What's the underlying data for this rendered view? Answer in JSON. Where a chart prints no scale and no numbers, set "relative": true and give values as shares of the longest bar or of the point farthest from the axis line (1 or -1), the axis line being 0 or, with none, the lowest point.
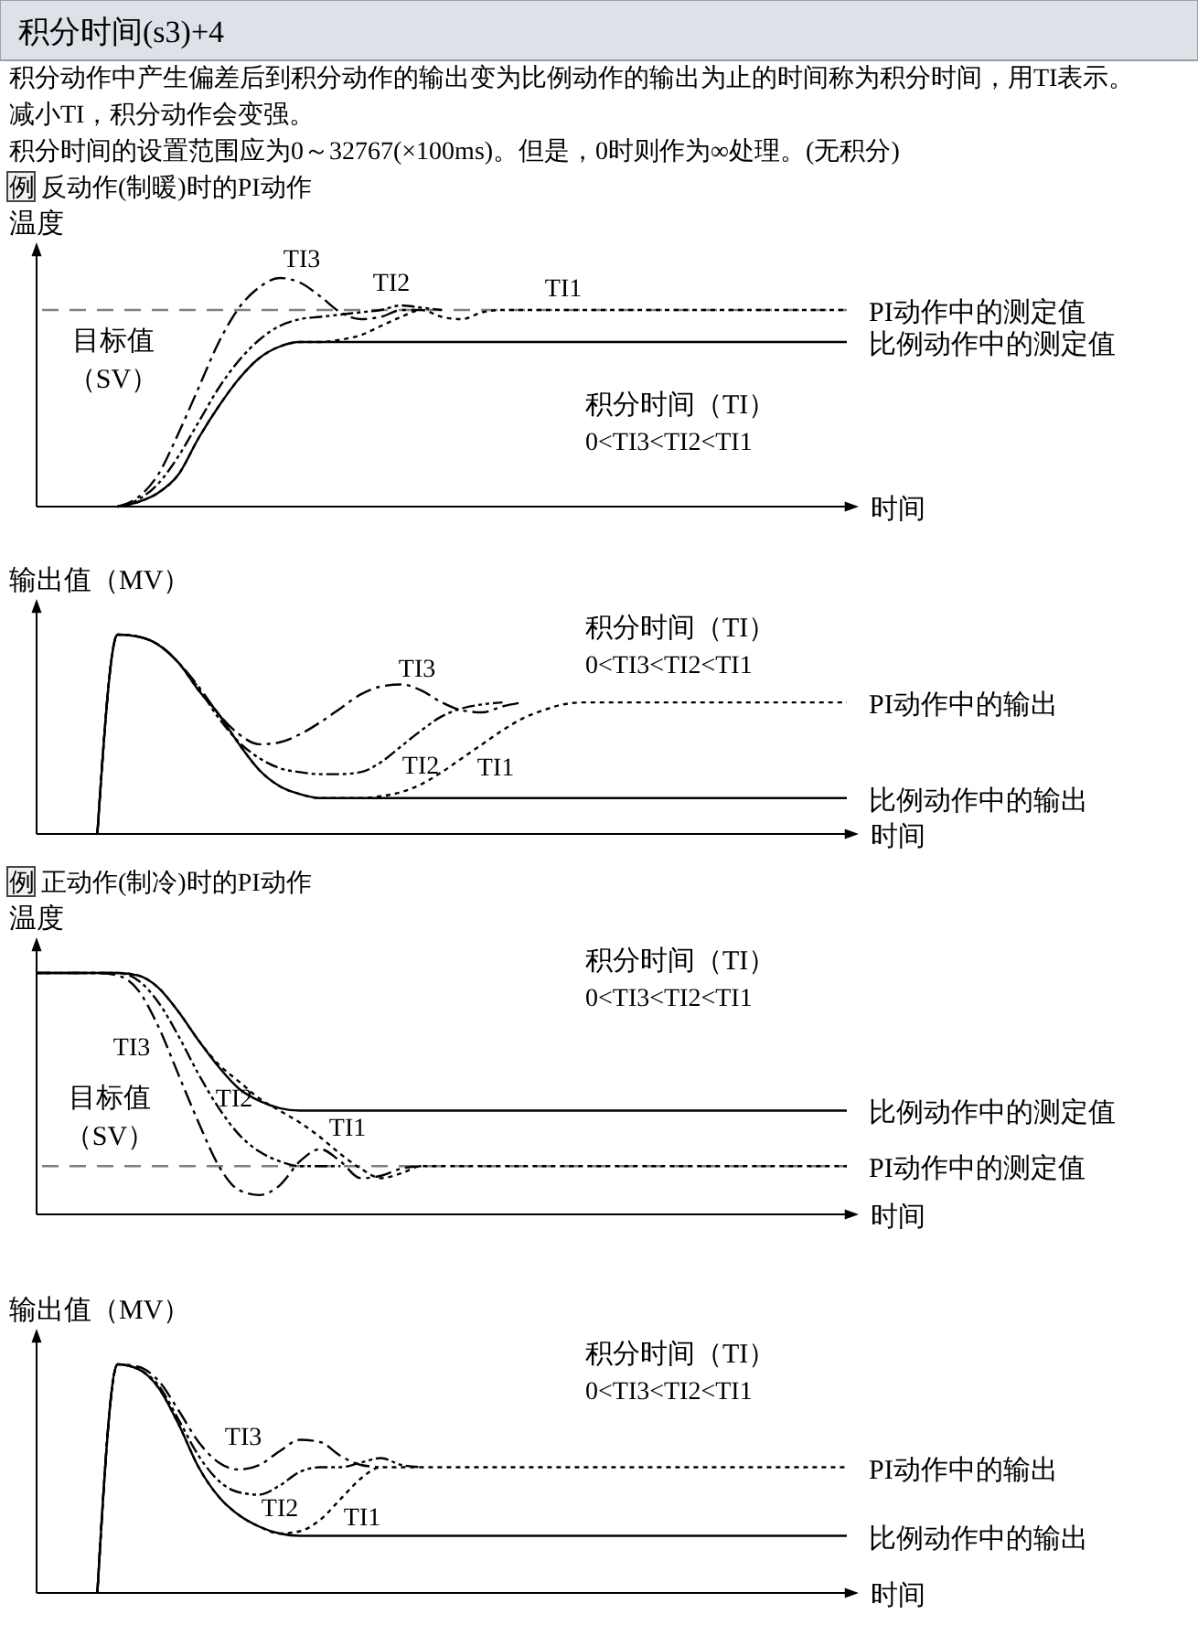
{
  "chart_data": [
    {
      "type": "line",
      "relative": true,
      "title": "积分时间(s3)+4",
      "ylabel": "温度",
      "xlabel": "时间",
      "categories": [
        null,
        null,
        null,
        null,
        null,
        null,
        null,
        null,
        null,
        null,
        null,
        null,
        null,
        null,
        null,
        null,
        null,
        null,
        null,
        null,
        null,
        null,
        null,
        null,
        null,
        null,
        null,
        null,
        null,
        null,
        null,
        null,
        null,
        null,
        null,
        null,
        null,
        null,
        null,
        null,
        null
      ],
      "series": [
        {
          "name": "比例动作中的测定值",
          "color": "#000000",
          "line_style": "solid",
          "values": [
            null,
            null,
            null,
            null,
            0,
            0.02,
            0.06,
            0.14,
            0.3,
            0.44,
            0.56,
            0.65,
            0.7,
            0.72,
            0.72,
            0.72,
            0.72,
            0.72,
            0.72,
            0.72,
            0.72,
            0.72,
            0.72,
            0.72,
            0.72,
            0.72,
            0.72,
            0.72,
            0.72,
            0.72,
            0.72,
            0.72,
            0.72,
            0.72,
            0.72,
            0.72,
            0.72,
            0.72,
            0.72,
            0.72,
            0.72
          ]
        },
        {
          "name": "TI1",
          "color": "#000000",
          "line_style": "dotted",
          "values": [
            null,
            null,
            null,
            null,
            0,
            0.02,
            0.06,
            0.14,
            0.3,
            0.44,
            0.56,
            0.65,
            0.7,
            0.72,
            0.72,
            0.73,
            0.75,
            0.79,
            0.83,
            0.86,
            0.83,
            0.82,
            0.85,
            0.86,
            0.86,
            0.86,
            0.86,
            0.86,
            0.86,
            0.86,
            0.86,
            0.86,
            0.86,
            0.86,
            0.86,
            0.86,
            0.86,
            0.86,
            0.86,
            0.86,
            0.86
          ]
        },
        {
          "name": "TI2",
          "color": "#000000",
          "line_style": "dashed",
          "values": [
            null,
            null,
            null,
            null,
            0,
            0.03,
            0.1,
            0.22,
            0.37,
            0.52,
            0.64,
            0.73,
            0.79,
            0.82,
            0.83,
            0.84,
            0.85,
            0.86,
            0.88,
            0.87,
            0.86,
            null,
            null,
            null,
            null,
            null,
            null,
            null,
            null,
            null,
            null,
            null,
            null,
            null,
            null,
            null,
            null,
            null,
            null,
            null,
            null
          ]
        },
        {
          "name": "TI3",
          "color": "#000000",
          "line_style": "dashed",
          "values": [
            null,
            null,
            null,
            null,
            0,
            0.04,
            0.14,
            0.32,
            0.52,
            0.72,
            0.87,
            0.96,
            1.0,
            0.98,
            0.92,
            0.85,
            0.82,
            0.83,
            0.86,
            0.86,
            null,
            null,
            null,
            null,
            null,
            null,
            null,
            null,
            null,
            null,
            null,
            null,
            null,
            null,
            null,
            null,
            null,
            null,
            null,
            null,
            null
          ]
        }
      ],
      "ref_lines": [
        {
          "axis": "y",
          "value": 0.86,
          "label": "目标值（SV）",
          "color": "#808080",
          "line_style": "dashed"
        }
      ],
      "annotations": [
        "积分动作中产生偏差后到积分动作的输出变为比例动作的输出为止的时间称为积分时间，用TI表示。",
        "减小TI，积分动作会变强。",
        "积分时间的设置范围应为0～32767(×100ms)。但是，0时则作为∞处理。(无积分)",
        "例 反动作(制暖)时的PI动作",
        "积分时间（TI）",
        "0<TI3<TI2<TI1",
        "PI动作中的测定值"
      ]
    },
    {
      "type": "line",
      "relative": true,
      "ylabel": "输出值（MV）",
      "xlabel": "时间",
      "categories": [
        null,
        null,
        null,
        null,
        null,
        null,
        null,
        null,
        null,
        null,
        null,
        null,
        null,
        null,
        null,
        null,
        null,
        null,
        null,
        null,
        null,
        null,
        null,
        null,
        null,
        null,
        null,
        null,
        null,
        null,
        null,
        null,
        null,
        null,
        null,
        null,
        null,
        null,
        null,
        null,
        null
      ],
      "series": [
        {
          "name": "比例动作中的输出",
          "color": "#000000",
          "line_style": "solid",
          "values": [
            null,
            null,
            null,
            0,
            1.0,
            0.99,
            0.95,
            0.86,
            0.72,
            0.6,
            0.45,
            0.32,
            0.24,
            0.2,
            0.18,
            0.18,
            0.18,
            0.18,
            0.18,
            0.18,
            0.18,
            0.18,
            0.18,
            0.18,
            0.18,
            0.18,
            0.18,
            0.18,
            0.18,
            0.18,
            0.18,
            0.18,
            0.18,
            0.18,
            0.18,
            0.18,
            0.18,
            0.18,
            0.18,
            0.18,
            0.18
          ]
        },
        {
          "name": "TI1",
          "color": "#000000",
          "line_style": "dotted",
          "values": [
            null,
            null,
            null,
            0,
            1.0,
            0.99,
            0.95,
            0.86,
            0.72,
            0.6,
            0.45,
            0.32,
            0.24,
            0.2,
            0.18,
            0.18,
            0.18,
            0.19,
            0.21,
            0.25,
            0.31,
            0.38,
            0.45,
            0.52,
            0.58,
            0.62,
            0.65,
            0.66,
            0.66,
            0.66,
            0.66,
            0.66,
            0.66,
            0.66,
            0.66,
            0.66,
            0.66,
            0.66,
            0.66,
            0.66,
            0.66
          ]
        },
        {
          "name": "TI2",
          "color": "#000000",
          "line_style": "dashed",
          "values": [
            null,
            null,
            null,
            0,
            1.0,
            0.99,
            0.95,
            0.86,
            0.73,
            0.58,
            0.46,
            0.38,
            0.33,
            0.31,
            0.3,
            0.3,
            0.31,
            0.36,
            0.44,
            0.52,
            0.59,
            0.63,
            0.65,
            0.66,
            null,
            null,
            null,
            null,
            null,
            null,
            null,
            null,
            null,
            null,
            null,
            null,
            null,
            null,
            null,
            null,
            null
          ]
        },
        {
          "name": "TI3",
          "color": "#000000",
          "line_style": "dashed",
          "values": [
            null,
            null,
            null,
            0,
            1.0,
            0.99,
            0.95,
            0.86,
            0.74,
            0.6,
            0.5,
            0.45,
            0.46,
            0.5,
            0.56,
            0.63,
            0.7,
            0.74,
            0.75,
            0.72,
            0.66,
            0.62,
            0.61,
            0.64,
            0.66,
            null,
            null,
            null,
            null,
            null,
            null,
            null,
            null,
            null,
            null,
            null,
            null,
            null,
            null,
            null,
            null
          ]
        }
      ],
      "annotations": [
        "积分时间（TI）",
        "0<TI3<TI2<TI1",
        "PI动作中的输出"
      ]
    },
    {
      "type": "line",
      "relative": true,
      "ylabel": "温度",
      "xlabel": "时间",
      "categories": [
        null,
        null,
        null,
        null,
        null,
        null,
        null,
        null,
        null,
        null,
        null,
        null,
        null,
        null,
        null,
        null,
        null,
        null,
        null,
        null,
        null,
        null,
        null,
        null,
        null,
        null,
        null,
        null,
        null,
        null,
        null,
        null,
        null,
        null,
        null,
        null,
        null,
        null,
        null,
        null,
        null
      ],
      "series": [
        {
          "name": "比例动作中的测定值",
          "color": "#000000",
          "line_style": "solid",
          "values": [
            1,
            1,
            1,
            1,
            1.0,
            0.99,
            0.94,
            0.84,
            0.72,
            0.61,
            0.52,
            0.47,
            0.44,
            0.43,
            0.43,
            0.43,
            0.43,
            0.43,
            0.43,
            0.43,
            0.43,
            0.43,
            0.43,
            0.43,
            0.43,
            0.43,
            0.43,
            0.43,
            0.43,
            0.43,
            0.43,
            0.43,
            0.43,
            0.43,
            0.43,
            0.43,
            0.43,
            0.43,
            0.43,
            0.43,
            0.43
          ]
        },
        {
          "name": "TI1",
          "color": "#000000",
          "line_style": "dotted",
          "values": [
            1,
            1,
            1,
            1,
            1.0,
            0.99,
            0.94,
            0.84,
            0.72,
            0.62,
            0.55,
            0.48,
            0.43,
            0.38,
            0.32,
            0.25,
            0.19,
            0.15,
            0.17,
            0.2,
            0.2,
            0.2,
            0.2,
            0.2,
            0.2,
            0.2,
            0.2,
            0.2,
            0.2,
            0.2,
            0.2,
            0.2,
            0.2,
            0.2,
            0.2,
            0.2,
            0.2,
            0.2,
            0.2,
            0.2,
            0.2
          ]
        },
        {
          "name": "TI2",
          "color": "#000000",
          "line_style": "dashed",
          "values": [
            1,
            1,
            1,
            1,
            1.0,
            0.97,
            0.88,
            0.74,
            0.58,
            0.44,
            0.33,
            0.26,
            0.22,
            0.2,
            0.2,
            0.2,
            null,
            null,
            null,
            null,
            null,
            null,
            null,
            null,
            null,
            null,
            null,
            null,
            null,
            null,
            null,
            null,
            null,
            null,
            null,
            null,
            null,
            null,
            null,
            null,
            null
          ]
        },
        {
          "name": "TI3",
          "color": "#000000",
          "line_style": "dashed",
          "values": [
            1,
            1,
            1,
            1,
            0.99,
            0.93,
            0.78,
            0.58,
            0.38,
            0.2,
            0.1,
            0.08,
            0.12,
            0.22,
            0.27,
            0.22,
            0.15,
            0.16,
            0.19,
            0.2,
            null,
            null,
            null,
            null,
            null,
            null,
            null,
            null,
            null,
            null,
            null,
            null,
            null,
            null,
            null,
            null,
            null,
            null,
            null,
            null,
            null
          ]
        }
      ],
      "ref_lines": [
        {
          "axis": "y",
          "value": 0.2,
          "label": "目标值（SV）",
          "color": "#808080",
          "line_style": "dashed"
        }
      ],
      "annotations": [
        "例 正动作(制冷)时的PI动作",
        "积分时间（TI）",
        "0<TI3<TI2<TI1",
        "PI动作中的测定值"
      ]
    },
    {
      "type": "line",
      "relative": true,
      "ylabel": "输出值（MV）",
      "xlabel": "时间",
      "categories": [
        null,
        null,
        null,
        null,
        null,
        null,
        null,
        null,
        null,
        null,
        null,
        null,
        null,
        null,
        null,
        null,
        null,
        null,
        null,
        null,
        null,
        null,
        null,
        null,
        null,
        null,
        null,
        null,
        null,
        null,
        null,
        null,
        null,
        null,
        null,
        null,
        null,
        null,
        null,
        null,
        null
      ],
      "series": [
        {
          "name": "比例动作中的输出",
          "color": "#000000",
          "line_style": "solid",
          "values": [
            null,
            null,
            null,
            0,
            1.0,
            0.98,
            0.9,
            0.74,
            0.55,
            0.42,
            0.34,
            0.29,
            0.26,
            0.25,
            0.25,
            0.25,
            0.25,
            0.25,
            0.25,
            0.25,
            0.25,
            0.25,
            0.25,
            0.25,
            0.25,
            0.25,
            0.25,
            0.25,
            0.25,
            0.25,
            0.25,
            0.25,
            0.25,
            0.25,
            0.25,
            0.25,
            0.25,
            0.25,
            0.25,
            0.25,
            0.25
          ]
        },
        {
          "name": "TI1",
          "color": "#000000",
          "line_style": "dotted",
          "values": [
            null,
            null,
            null,
            0,
            1.0,
            0.98,
            0.9,
            0.74,
            0.55,
            0.42,
            0.34,
            0.29,
            0.26,
            0.27,
            0.32,
            0.41,
            0.5,
            0.55,
            0.55,
            0.55,
            0.55,
            0.55,
            0.55,
            0.55,
            0.55,
            0.55,
            0.55,
            0.55,
            0.55,
            0.55,
            0.55,
            0.55,
            0.55,
            0.55,
            0.55,
            0.55,
            0.55,
            0.55,
            0.55,
            0.55,
            0.55
          ]
        },
        {
          "name": "TI2",
          "color": "#000000",
          "line_style": "dashed",
          "values": [
            null,
            null,
            null,
            0,
            1.0,
            0.98,
            0.91,
            0.76,
            0.6,
            0.49,
            0.44,
            0.43,
            0.47,
            0.53,
            0.55,
            0.55,
            0.57,
            0.59,
            0.56,
            0.55,
            null,
            null,
            null,
            null,
            null,
            null,
            null,
            null,
            null,
            null,
            null,
            null,
            null,
            null,
            null,
            null,
            null,
            null,
            null,
            null,
            null
          ]
        },
        {
          "name": "TI3",
          "color": "#000000",
          "line_style": "dashed",
          "values": [
            null,
            null,
            null,
            0,
            1.0,
            0.99,
            0.93,
            0.8,
            0.66,
            0.57,
            0.54,
            0.56,
            0.62,
            0.67,
            0.66,
            0.6,
            0.56,
            0.55,
            null,
            null,
            null,
            null,
            null,
            null,
            null,
            null,
            null,
            null,
            null,
            null,
            null,
            null,
            null,
            null,
            null,
            null,
            null,
            null,
            null,
            null,
            null
          ]
        }
      ],
      "annotations": [
        "积分时间（TI）",
        "0<TI3<TI2<TI1",
        "PI动作中的输出"
      ]
    }
  ]
}
